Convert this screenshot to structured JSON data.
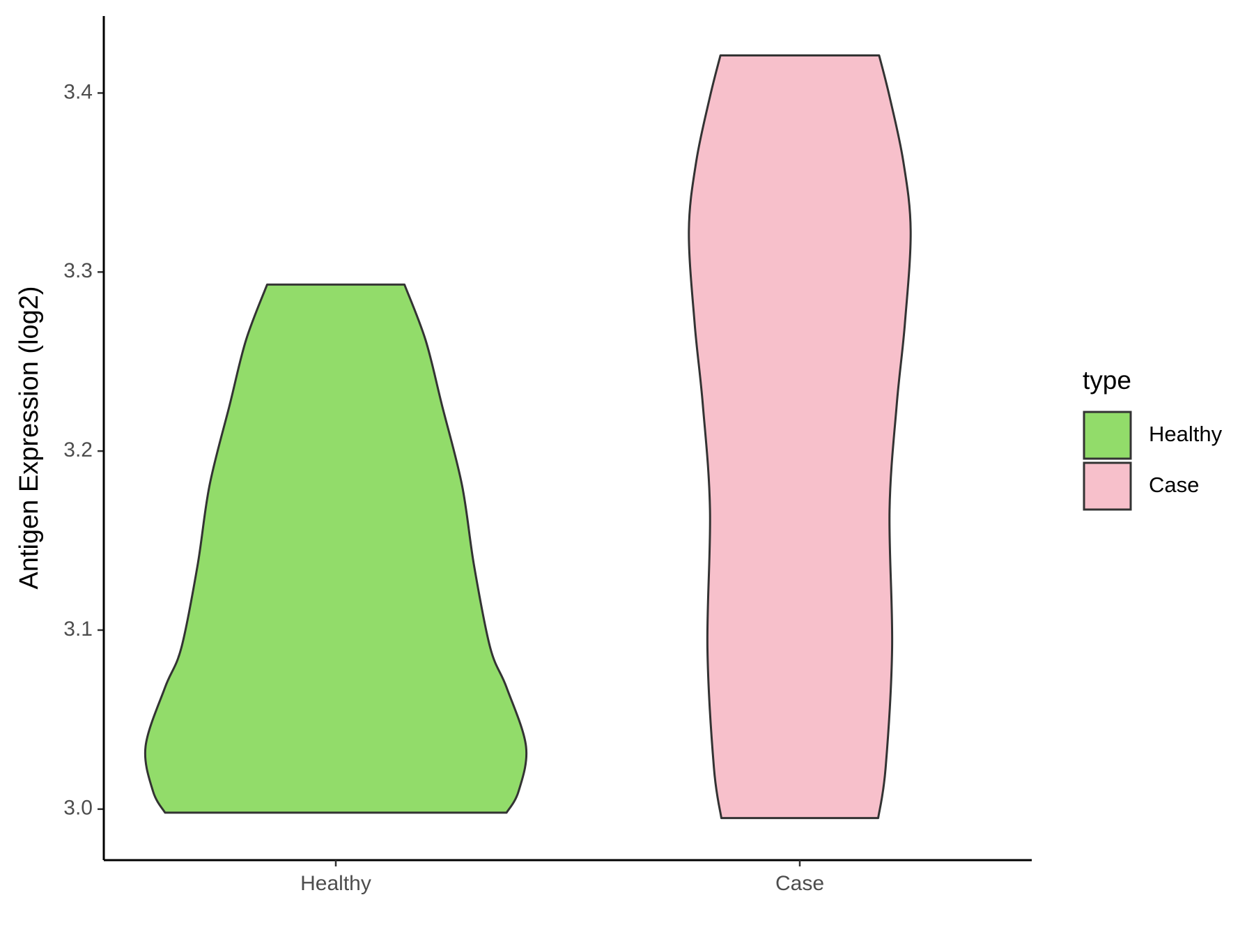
{
  "chart_data": {
    "type": "violin",
    "y_label": "Antigen Expression (log2)",
    "categories": [
      "Healthy",
      "Case"
    ],
    "legend_title": "type",
    "legend_position": "right",
    "ylim": [
      2.9715,
      3.443
    ],
    "yticks": [
      {
        "value": 3.0,
        "label": "3.0"
      },
      3.1,
      3.2,
      3.3,
      3.4
    ],
    "series": [
      {
        "name": "Healthy",
        "color": "#92dc6a",
        "y": [
          2.998,
          3.01,
          3.035,
          3.068,
          3.09,
          3.136,
          3.181,
          3.226,
          3.262,
          3.293
        ],
        "width": [
          0.736,
          0.788,
          0.82,
          0.736,
          0.666,
          0.596,
          0.544,
          0.457,
          0.387,
          0.296
        ]
      },
      {
        "name": "Case",
        "color": "#f7c0cb",
        "y": [
          2.995,
          3.023,
          3.09,
          3.167,
          3.226,
          3.271,
          3.323,
          3.362,
          3.398,
          3.421
        ],
        "width": [
          0.338,
          0.37,
          0.398,
          0.387,
          0.418,
          0.453,
          0.478,
          0.446,
          0.387,
          0.342
        ]
      }
    ]
  }
}
